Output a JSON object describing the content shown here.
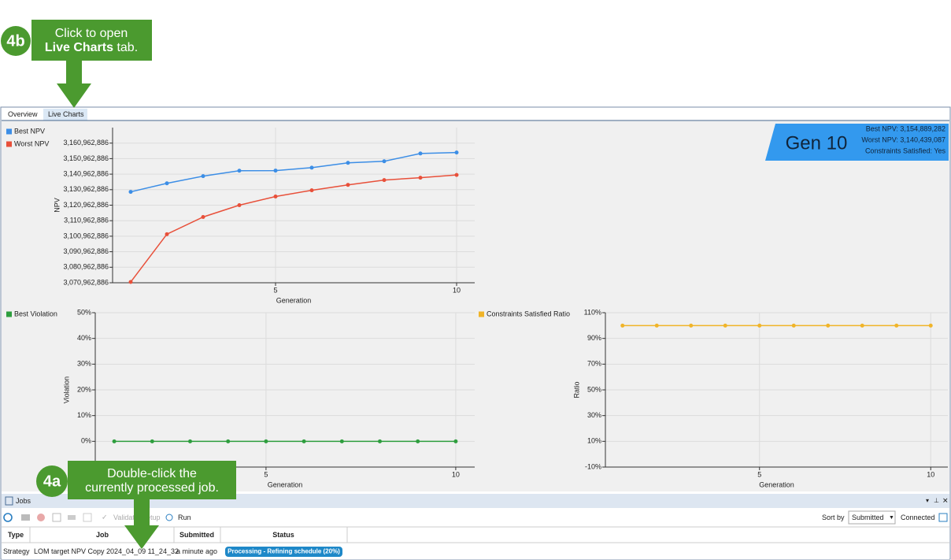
{
  "annotations": {
    "top": {
      "badge": "4b",
      "line1": "Click to open",
      "bold": "Live Charts",
      "rest": "tab."
    },
    "bottom": {
      "badge": "4a",
      "line1": "Double-click the",
      "line2": "currently processed job."
    }
  },
  "tabs": [
    "Overview",
    "Live Charts"
  ],
  "gen_badge": {
    "title": "Gen 10",
    "lines": [
      "Best NPV: 3,154,889,282",
      "Worst NPV: 3,140,439,087",
      "Constraints Satisfied: Yes"
    ]
  },
  "chart_data": [
    {
      "type": "line",
      "x_label": "Generation",
      "y_label": "NPV",
      "x": [
        1,
        2,
        3,
        4,
        5,
        6,
        7,
        8,
        9,
        10
      ],
      "xlim": [
        0.5,
        10.5
      ],
      "xticks": [
        5,
        10
      ],
      "ylim": [
        3070962886,
        3170962886
      ],
      "yticks": [
        {
          "value": 3070962886,
          "label": "3,070,962,886"
        },
        {
          "value": 3080962886,
          "label": "3,080,962,886"
        },
        {
          "value": 3090962886,
          "label": "3,090,962,886"
        },
        {
          "value": 3100962886,
          "label": "3,100,962,886"
        },
        {
          "value": 3110962886,
          "label": "3,110,962,886"
        },
        {
          "value": 3120962886,
          "label": "3,120,962,886"
        },
        {
          "value": 3130962886,
          "label": "3,130,962,886"
        },
        {
          "value": 3140962886,
          "label": "3,140,962,886"
        },
        {
          "value": 3150962886,
          "label": "3,150,962,886"
        },
        {
          "value": 3160962886,
          "label": "3,160,962,886"
        }
      ],
      "grid": true,
      "series": [
        {
          "name": "Best NPV",
          "color": "#3c8ee6",
          "values": [
            3129560000,
            3135060000,
            3139660000,
            3143160000,
            3143260000,
            3145160000,
            3148260000,
            3149260000,
            3154260000,
            3154889282
          ]
        },
        {
          "name": "Worst NPV",
          "color": "#e8503a",
          "values": [
            3071460000,
            3102260000,
            3113360000,
            3120960000,
            3126560000,
            3130560000,
            3134060000,
            3137160000,
            3138660000,
            3140439087
          ]
        }
      ]
    },
    {
      "type": "line",
      "x_label": "Generation",
      "y_label": "Violation",
      "x": [
        1,
        2,
        3,
        4,
        5,
        6,
        7,
        8,
        9,
        10
      ],
      "xlim": [
        0.5,
        10.5
      ],
      "xticks": [
        5,
        10
      ],
      "ylim": [
        -10,
        50
      ],
      "yticks": [
        {
          "value": 0,
          "label": "0%"
        },
        {
          "value": 10,
          "label": "10%"
        },
        {
          "value": 20,
          "label": "20%"
        },
        {
          "value": 30,
          "label": "30%"
        },
        {
          "value": 40,
          "label": "40%"
        },
        {
          "value": 50,
          "label": "50%"
        }
      ],
      "grid": true,
      "series": [
        {
          "name": "Best Violation",
          "color": "#2e9e3e",
          "values": [
            0,
            0,
            0,
            0,
            0,
            0,
            0,
            0,
            0,
            0
          ]
        }
      ]
    },
    {
      "type": "line",
      "x_label": "Generation",
      "y_label": "Ratio",
      "x": [
        1,
        2,
        3,
        4,
        5,
        6,
        7,
        8,
        9,
        10
      ],
      "xlim": [
        0.5,
        10.5
      ],
      "xticks": [
        5,
        10
      ],
      "ylim": [
        -10,
        110
      ],
      "yticks": [
        {
          "value": -10,
          "label": "-10%"
        },
        {
          "value": 10,
          "label": "10%"
        },
        {
          "value": 30,
          "label": "30%"
        },
        {
          "value": 50,
          "label": "50%"
        },
        {
          "value": 70,
          "label": "70%"
        },
        {
          "value": 90,
          "label": "90%"
        },
        {
          "value": 110,
          "label": "110%"
        }
      ],
      "grid": true,
      "series": [
        {
          "name": "Constraints Satisfied Ratio",
          "color": "#f0b429",
          "values": [
            100,
            100,
            100,
            100,
            100,
            100,
            100,
            100,
            100,
            100
          ]
        }
      ]
    }
  ],
  "jobs": {
    "title": "Jobs",
    "toolbar": [
      "Validate",
      "Setup",
      "Run"
    ],
    "sort_label": "Sort by",
    "sort_value": "Submitted",
    "connection": "Connected",
    "columns": [
      "Type",
      "Job",
      "Submitted",
      "Status"
    ],
    "rows": [
      [
        "Strategy",
        "LOM target NPV Copy 2024_04_09 11_24_32",
        "a minute ago",
        "Processing - Refining schedule (20%)"
      ]
    ]
  }
}
